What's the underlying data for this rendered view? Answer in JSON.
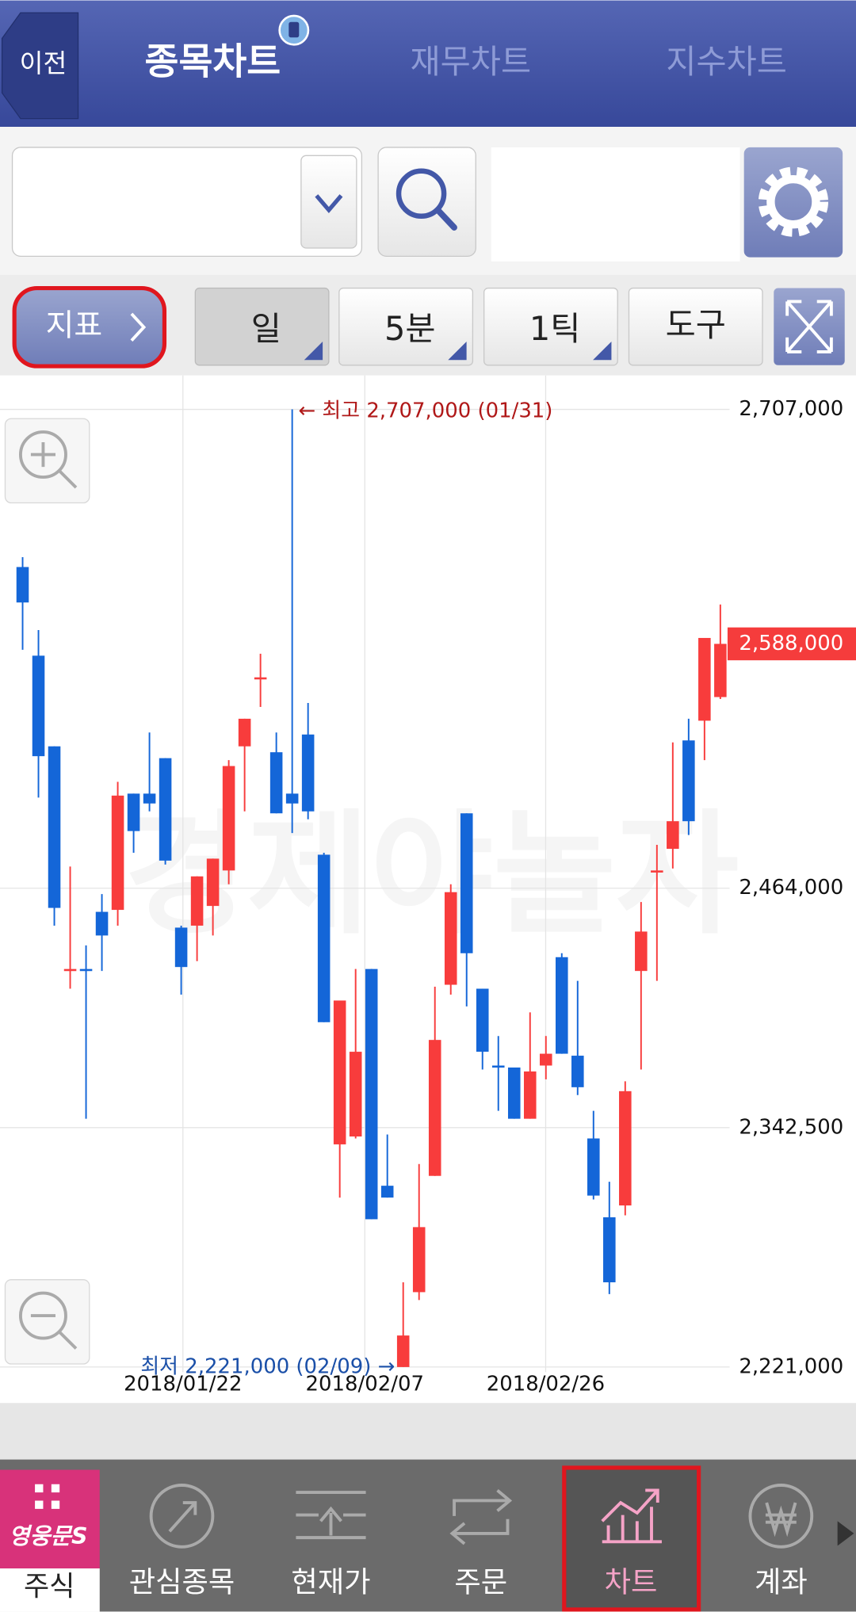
{
  "header": {
    "back": "이전",
    "tabs": [
      "종목차트",
      "재무차트",
      "지수차트"
    ]
  },
  "toolbar": {
    "indicator": "지표",
    "periods": [
      "일",
      "5분",
      "1틱"
    ],
    "tools": "도구"
  },
  "chart": {
    "type": "candlestick",
    "watermark": "경제야놀자",
    "up_color": "#f83c3c",
    "down_color": "#1466d8",
    "open": [
      2627000,
      2582000,
      2536000,
      2422000,
      2423000,
      2452000,
      2453000,
      2512000,
      2512000,
      2530000,
      2444000,
      2445000,
      2455000,
      2473000,
      2536000,
      2570000,
      2533000,
      2512000,
      2542000,
      2481000,
      2334000,
      2338000,
      2423000,
      2313000,
      2221000,
      2259000,
      2318000,
      2415000,
      2502000,
      2413000,
      2374000,
      2373000,
      2347000,
      2374000,
      2429000,
      2379000,
      2337000,
      2297000,
      2303000,
      2422000,
      2472000,
      2484000,
      2539000,
      2549000,
      2561000
    ],
    "high": [
      2632000,
      2595000,
      2536000,
      2475000,
      2435000,
      2461000,
      2518000,
      2512000,
      2543000,
      2530000,
      2445000,
      2470000,
      2479000,
      2529000,
      2550000,
      2583000,
      2543000,
      2707000,
      2558000,
      2482000,
      2407000,
      2423000,
      2423000,
      2339000,
      2264000,
      2324000,
      2414000,
      2466000,
      2502000,
      2413000,
      2389000,
      2373000,
      2401000,
      2389000,
      2431000,
      2417000,
      2351000,
      2315000,
      2366000,
      2457000,
      2486000,
      2538000,
      2550000,
      2591000,
      2608000
    ],
    "low": [
      2585000,
      2510000,
      2445000,
      2413000,
      2347000,
      2422000,
      2445000,
      2482000,
      2503000,
      2476000,
      2410000,
      2427000,
      2440000,
      2466000,
      2503000,
      2556000,
      2502000,
      2492000,
      2499000,
      2396000,
      2307000,
      2337000,
      2296000,
      2307000,
      2221000,
      2255000,
      2318000,
      2410000,
      2404000,
      2372000,
      2351000,
      2347000,
      2347000,
      2367000,
      2380000,
      2359000,
      2306000,
      2258000,
      2298000,
      2372000,
      2417000,
      2474000,
      2491000,
      2529000,
      2560000
    ],
    "close": [
      2609000,
      2531000,
      2454000,
      2423000,
      2422000,
      2440000,
      2511000,
      2493000,
      2507000,
      2478000,
      2424000,
      2470000,
      2479000,
      2526000,
      2550000,
      2571000,
      2502000,
      2507000,
      2503000,
      2396000,
      2407000,
      2381000,
      2296000,
      2307000,
      2237000,
      2292000,
      2387000,
      2462000,
      2431000,
      2381000,
      2373000,
      2347000,
      2371000,
      2380000,
      2380000,
      2363000,
      2308000,
      2264000,
      2361000,
      2442000,
      2473000,
      2498000,
      2498000,
      2591000,
      2588000
    ],
    "ylim": [
      2221000,
      2707000
    ],
    "yticks": [
      {
        "value": 2707000,
        "label": "2,707,000"
      },
      {
        "value": 2464000,
        "label": "2,464,000"
      },
      {
        "value": 2342500,
        "label": "2,342,500"
      },
      {
        "value": 2221000,
        "label": "2,221,000"
      }
    ],
    "dates": [
      "2018/01/22",
      "2018/02/07",
      "2018/02/26"
    ],
    "high_note": "← 최고 2,707,000 (01/31)",
    "low_note": "최저 2,221,000 (02/09) →",
    "last_label": "2,588,000"
  },
  "nav": {
    "logo": "영웅문S",
    "tabs": [
      "주식",
      "관심종목",
      "현재가",
      "주문",
      "차트",
      "계좌"
    ]
  }
}
